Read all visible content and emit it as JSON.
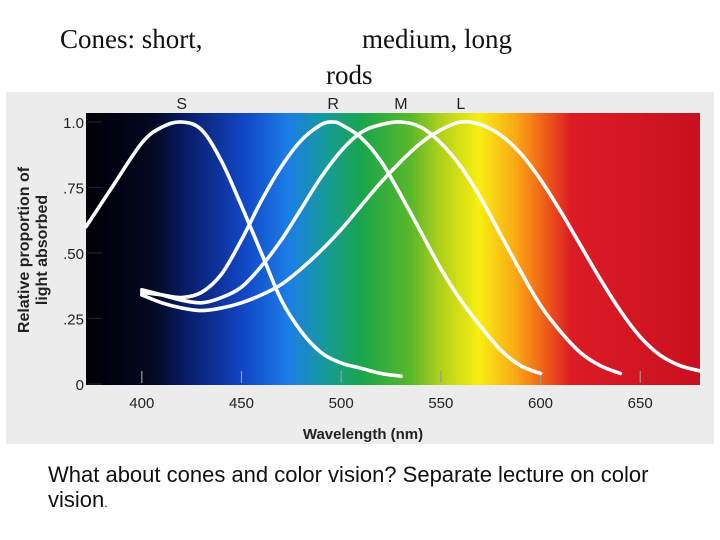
{
  "header": {
    "line1_left": "Cones: short,",
    "line1_right": "medium, long",
    "line2": "rods"
  },
  "caption": {
    "text": "What about cones and color vision? Separate lecture on color vision",
    "trailing": "."
  },
  "chart_data": {
    "type": "line",
    "title": "",
    "xlabel": "Wavelength (nm)",
    "ylabel": "Relative proportion of light absorbed",
    "xlim": [
      372,
      680
    ],
    "ylim": [
      0,
      1.0
    ],
    "x_ticks": [
      400,
      450,
      500,
      550,
      600,
      650
    ],
    "x_tick_labels": [
      "400",
      "450",
      "500",
      "550",
      "600",
      "650"
    ],
    "y_ticks": [
      0,
      0.25,
      0.5,
      0.75,
      1.0
    ],
    "y_tick_labels": [
      "0",
      ".25",
      ".50",
      ".75",
      "1.0"
    ],
    "background": "visible spectrum gradient (violet to red)",
    "grid": false,
    "colors": {
      "curve": "#ffffff",
      "axis_text": "#222222"
    },
    "series": [
      {
        "name": "S",
        "peak_x": 420,
        "x": [
          372,
          385,
          400,
          410,
          420,
          430,
          440,
          450,
          460,
          470,
          480,
          490,
          500,
          510,
          520,
          530
        ],
        "values": [
          0.6,
          0.75,
          0.92,
          0.98,
          1.0,
          0.97,
          0.85,
          0.68,
          0.5,
          0.32,
          0.2,
          0.12,
          0.08,
          0.06,
          0.04,
          0.03
        ]
      },
      {
        "name": "R",
        "peak_x": 496,
        "x": [
          400,
          410,
          420,
          430,
          440,
          450,
          460,
          470,
          480,
          490,
          496,
          500,
          510,
          520,
          530,
          540,
          550,
          560,
          570,
          580,
          590,
          600
        ],
        "values": [
          0.35,
          0.34,
          0.33,
          0.35,
          0.42,
          0.55,
          0.7,
          0.83,
          0.93,
          0.99,
          1.0,
          0.99,
          0.94,
          0.85,
          0.72,
          0.58,
          0.44,
          0.32,
          0.22,
          0.13,
          0.07,
          0.04
        ]
      },
      {
        "name": "M",
        "peak_x": 530,
        "x": [
          400,
          410,
          420,
          430,
          440,
          450,
          460,
          470,
          480,
          490,
          500,
          510,
          520,
          530,
          540,
          550,
          560,
          570,
          580,
          590,
          600,
          610,
          620,
          630,
          640
        ],
        "values": [
          0.36,
          0.34,
          0.32,
          0.31,
          0.33,
          0.37,
          0.45,
          0.55,
          0.67,
          0.79,
          0.89,
          0.96,
          0.99,
          1.0,
          0.98,
          0.92,
          0.83,
          0.71,
          0.57,
          0.43,
          0.3,
          0.2,
          0.12,
          0.07,
          0.04
        ]
      },
      {
        "name": "L",
        "peak_x": 560,
        "x": [
          400,
          410,
          420,
          430,
          440,
          450,
          460,
          470,
          480,
          490,
          500,
          510,
          520,
          530,
          540,
          550,
          560,
          570,
          580,
          590,
          600,
          610,
          620,
          630,
          640,
          650,
          660,
          670,
          680
        ],
        "values": [
          0.34,
          0.31,
          0.29,
          0.28,
          0.29,
          0.31,
          0.34,
          0.38,
          0.44,
          0.51,
          0.59,
          0.68,
          0.77,
          0.85,
          0.92,
          0.97,
          1.0,
          0.99,
          0.95,
          0.88,
          0.78,
          0.66,
          0.53,
          0.4,
          0.28,
          0.18,
          0.11,
          0.07,
          0.05
        ]
      }
    ]
  }
}
